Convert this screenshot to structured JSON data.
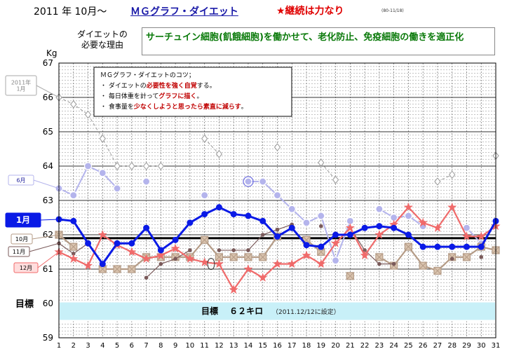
{
  "header": {
    "date": "2011 年 10月～",
    "title": "ＭＧグラフ・ダイエット",
    "motto": "★継続は力なり",
    "code": "(80-11/18)"
  },
  "reason": {
    "label_line1": "ダイエットの",
    "label_line2": "必要な理由",
    "text": "サーチュイン細胞(飢餓細胞)を働かせて、老化防止、免疫細胞の働きを適正化"
  },
  "tips": {
    "title": "ＭＧグラフ・ダイエットのコツ；",
    "items": [
      {
        "pre": "・ ダイエットの",
        "em": "必要性を強く自覚",
        "post": "する。"
      },
      {
        "pre": "・ 毎日体重を計って",
        "em": "グラフに描く",
        "post": "。"
      },
      {
        "pre": "・ 食事量を",
        "em": "少なくしようと思ったら素直に減らす",
        "post": "。"
      }
    ]
  },
  "goal": {
    "label": "目標",
    "text": "目標　 ６２キロ",
    "note": "（2011.12/12に設定）"
  },
  "colors": {
    "jan2011": "#999999",
    "jun": "#b4b4ec",
    "oct": "#b49b86",
    "nov": "#7a5a5a",
    "dec": "#f06a6a",
    "jan": "#0a1ae6",
    "target": "#000000",
    "goal_band": "#c8f0f8"
  },
  "chart_data": {
    "type": "line",
    "y_unit": "Kg",
    "ylim": [
      59,
      67
    ],
    "yticks": [
      "59",
      "60",
      "61",
      "62",
      "63",
      "64",
      "65",
      "66",
      "67"
    ],
    "x": [
      "1",
      "2",
      "3",
      "4",
      "5",
      "6",
      "7",
      "8",
      "9",
      "10",
      "11",
      "12",
      "13",
      "14",
      "15",
      "16",
      "17",
      "18",
      "19",
      "20",
      "21",
      "22",
      "23",
      "24",
      "25",
      "26",
      "27",
      "28",
      "29",
      "30",
      "31"
    ],
    "target_line": 61.9,
    "goal_band": [
      59.5,
      60.05
    ],
    "series": [
      {
        "name": "2011年\n1月",
        "key": "jan2011",
        "dashed": true,
        "marker": "diamond",
        "values": [
          66.0,
          65.8,
          65.5,
          64.8,
          64.0,
          64.0,
          64.0,
          64.0,
          null,
          null,
          64.8,
          64.35,
          null,
          null,
          null,
          64.55,
          null,
          null,
          64.1,
          63.6,
          null,
          null,
          null,
          null,
          null,
          null,
          63.55,
          63.75,
          null,
          null,
          64.3
        ]
      },
      {
        "name": "6月",
        "key": "jun",
        "dashed": false,
        "marker": "circle",
        "values": [
          63.35,
          63.15,
          64.0,
          63.8,
          63.35,
          null,
          63.55,
          null,
          null,
          null,
          63.15,
          null,
          null,
          63.55,
          63.55,
          63.15,
          62.75,
          62.35,
          62.55,
          61.25,
          62.4,
          null,
          62.75,
          62.5,
          62.55,
          62.25,
          null,
          null,
          62.2,
          61.75,
          null
        ]
      },
      {
        "name": "10月",
        "key": "oct",
        "dashed": false,
        "marker": "diamondbox",
        "values": [
          62.0,
          61.65,
          null,
          61.0,
          61.0,
          61.0,
          61.35,
          61.35,
          61.35,
          61.35,
          61.85,
          61.35,
          61.35,
          61.35,
          61.35,
          61.95,
          null,
          61.85,
          61.5,
          null,
          60.8,
          null,
          61.35,
          61.1,
          61.65,
          61.1,
          60.95,
          61.35,
          61.35,
          61.65,
          61.55
        ]
      },
      {
        "name": "11月",
        "key": "nov",
        "dashed": false,
        "marker": "dot",
        "values": [
          61.75,
          61.45,
          61.75,
          null,
          61.75,
          null,
          60.75,
          61.15,
          61.3,
          61.55,
          null,
          61.55,
          61.55,
          61.55,
          62.0,
          62.15,
          62.3,
          null,
          62.25,
          null,
          62.2,
          61.55,
          61.15,
          61.15,
          null,
          null,
          null,
          61.3,
          null,
          61.35,
          null
        ]
      },
      {
        "name": "12月",
        "key": "dec",
        "dashed": false,
        "marker": "star",
        "values": [
          61.5,
          61.3,
          61.1,
          62.0,
          61.7,
          61.5,
          61.3,
          61.4,
          61.6,
          61.3,
          61.2,
          61.15,
          60.4,
          61.0,
          60.75,
          61.15,
          61.15,
          61.4,
          61.15,
          61.75,
          62.2,
          61.4,
          62.0,
          62.3,
          62.8,
          62.35,
          62.2,
          62.8,
          61.95,
          61.95,
          62.25
        ]
      },
      {
        "name": "1月",
        "key": "jan",
        "dashed": false,
        "marker": "dot",
        "values": [
          62.45,
          62.4,
          61.75,
          61.15,
          61.75,
          61.75,
          62.2,
          61.55,
          61.85,
          62.35,
          62.6,
          62.8,
          62.6,
          62.55,
          62.4,
          61.95,
          62.2,
          61.7,
          61.65,
          62.0,
          62.0,
          62.2,
          62.25,
          62.2,
          62.0,
          61.65,
          61.65,
          61.65,
          61.65,
          61.65,
          62.4
        ]
      }
    ]
  }
}
